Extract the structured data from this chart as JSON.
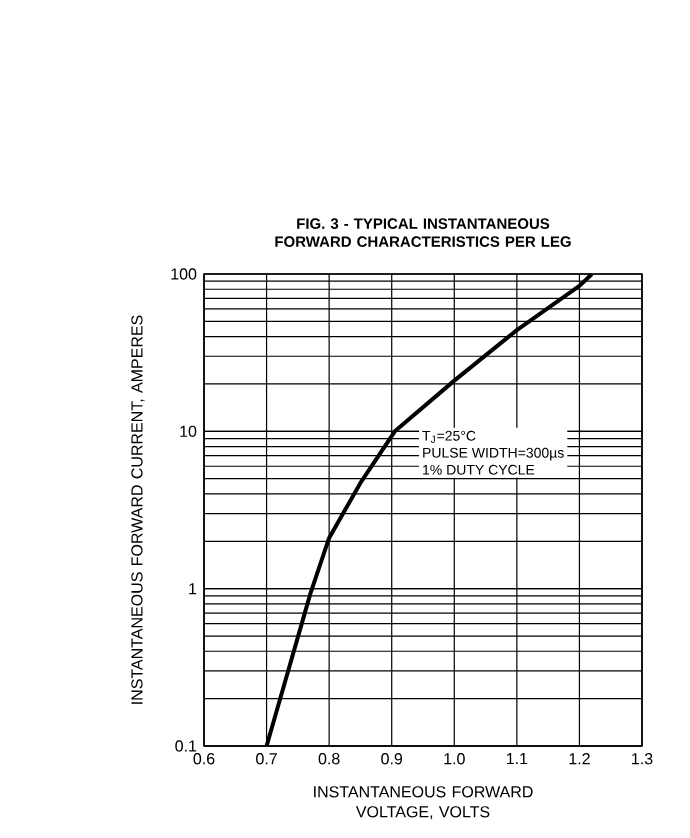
{
  "chart_data": {
    "type": "line",
    "title": "FIG. 3 - TYPICAL INSTANTANEOUS FORWARD CHARACTERISTICS PER LEG",
    "xlabel": "INSTANTANEOUS FORWARD VOLTAGE, VOLTS",
    "ylabel": "INSTANTANEOUS FORWARD CURRENT, AMPERES",
    "x": [
      0.7,
      0.77,
      0.8,
      0.85,
      0.905,
      1.0,
      1.1,
      1.2,
      1.22
    ],
    "series": [
      {
        "color": "#000000",
        "values": [
          0.1,
          0.93,
          2.1,
          4.7,
          10,
          21,
          44,
          84,
          100
        ]
      }
    ],
    "xlim": [
      0.6,
      1.3
    ],
    "ylim": [
      0.1,
      100
    ],
    "xticks": [
      {
        "value": 0.6,
        "label": "0.6"
      },
      {
        "value": 0.7,
        "label": "0.7"
      },
      {
        "value": 0.8,
        "label": "0.8"
      },
      {
        "value": 0.9,
        "label": "0.9"
      },
      {
        "value": 1.0,
        "label": "1.0"
      },
      {
        "value": 1.1,
        "label": "1.1"
      },
      {
        "value": 1.2,
        "label": "1.2"
      },
      {
        "value": 1.3,
        "label": "1.3"
      }
    ],
    "yticks": [
      {
        "value": 0.1,
        "label": "0.1"
      },
      {
        "value": 1,
        "label": "1"
      },
      {
        "value": 10,
        "label": "10"
      },
      {
        "value": 100,
        "label": "100"
      }
    ],
    "log": "y",
    "grid": true,
    "marker": "none",
    "line_style": "solid",
    "annotations": [
      "T$_{J}$=25°C",
      "PULSE WIDTH=300µs",
      "1% DUTY CYCLE"
    ]
  }
}
